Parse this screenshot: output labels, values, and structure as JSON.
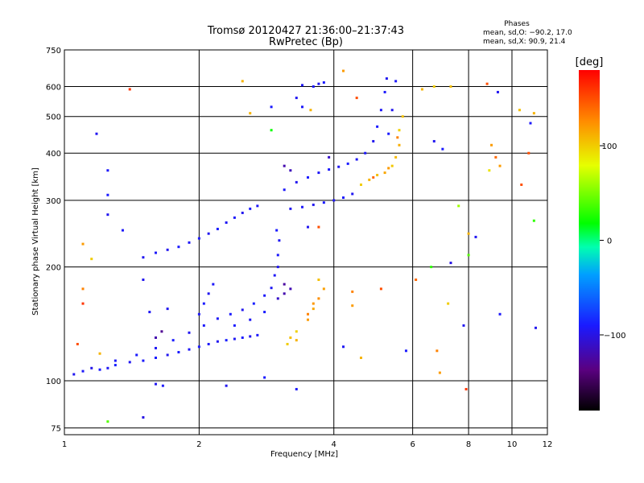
{
  "chart_data": {
    "type": "scatter",
    "title": "Tromsø 20120427 21:36:00–21:37:43",
    "subtitle": "RwPretec (Bp)",
    "xlabel": "Frequency [MHz]",
    "ylabel": "Stationary phase Virtual Height [km]",
    "x_scale": "log",
    "y_scale": "log",
    "xlim": [
      1,
      12
    ],
    "ylim": [
      72,
      750
    ],
    "x_ticks": [
      1,
      2,
      4,
      6,
      8,
      10,
      12
    ],
    "y_ticks": [
      75,
      100,
      200,
      300,
      400,
      500,
      600,
      750
    ],
    "grid": true,
    "phase_info": {
      "heading": "Phases",
      "line_o": "mean, sd,O: −90.2, 17.0",
      "line_x": "mean, sd,X:  90.9, 21.4"
    },
    "colorbar": {
      "label": "[deg]",
      "range": [
        -180,
        180
      ],
      "ticks": [
        100,
        0,
        -100
      ],
      "colormap": "rainbow"
    },
    "series": [
      {
        "values": [
          {
            "x": 1.05,
            "y": 104,
            "p": -95
          },
          {
            "x": 1.1,
            "y": 106,
            "p": -92
          },
          {
            "x": 1.15,
            "y": 108,
            "p": -98
          },
          {
            "x": 1.2,
            "y": 107,
            "p": -90
          },
          {
            "x": 1.25,
            "y": 108,
            "p": -94
          },
          {
            "x": 1.3,
            "y": 110,
            "p": -88
          },
          {
            "x": 1.4,
            "y": 112,
            "p": -95
          },
          {
            "x": 1.5,
            "y": 113,
            "p": -91
          },
          {
            "x": 1.6,
            "y": 115,
            "p": -90
          },
          {
            "x": 1.7,
            "y": 117,
            "p": -96
          },
          {
            "x": 1.8,
            "y": 119,
            "p": -89
          },
          {
            "x": 1.9,
            "y": 121,
            "p": -93
          },
          {
            "x": 2.0,
            "y": 123,
            "p": -90
          },
          {
            "x": 2.1,
            "y": 125,
            "p": -92
          },
          {
            "x": 2.2,
            "y": 127,
            "p": -95
          },
          {
            "x": 2.3,
            "y": 128,
            "p": -88
          },
          {
            "x": 2.4,
            "y": 129,
            "p": -94
          },
          {
            "x": 2.5,
            "y": 130,
            "p": -90
          },
          {
            "x": 2.6,
            "y": 131,
            "p": -96
          },
          {
            "x": 2.7,
            "y": 132,
            "p": -91
          },
          {
            "x": 1.3,
            "y": 113,
            "p": -92
          },
          {
            "x": 1.45,
            "y": 117,
            "p": -90
          },
          {
            "x": 1.6,
            "y": 122,
            "p": -94
          },
          {
            "x": 1.75,
            "y": 128,
            "p": -89
          },
          {
            "x": 1.9,
            "y": 134,
            "p": -95
          },
          {
            "x": 2.05,
            "y": 140,
            "p": -91
          },
          {
            "x": 2.2,
            "y": 146,
            "p": -93
          },
          {
            "x": 2.35,
            "y": 150,
            "p": -90
          },
          {
            "x": 2.5,
            "y": 154,
            "p": -96
          },
          {
            "x": 2.65,
            "y": 160,
            "p": -88
          },
          {
            "x": 2.8,
            "y": 168,
            "p": -92
          },
          {
            "x": 2.9,
            "y": 176,
            "p": -94
          },
          {
            "x": 2.0,
            "y": 150,
            "p": -93
          },
          {
            "x": 2.05,
            "y": 160,
            "p": -90
          },
          {
            "x": 2.1,
            "y": 170,
            "p": -95
          },
          {
            "x": 2.15,
            "y": 180,
            "p": -92
          },
          {
            "x": 2.4,
            "y": 140,
            "p": -90
          },
          {
            "x": 2.6,
            "y": 145,
            "p": -94
          },
          {
            "x": 2.8,
            "y": 152,
            "p": -89
          },
          {
            "x": 2.95,
            "y": 190,
            "p": -93
          },
          {
            "x": 3.0,
            "y": 200,
            "p": -96
          },
          {
            "x": 3.0,
            "y": 215,
            "p": -91
          },
          {
            "x": 3.02,
            "y": 235,
            "p": -94
          },
          {
            "x": 2.98,
            "y": 250,
            "p": -90
          },
          {
            "x": 3.0,
            "y": 165,
            "p": -110
          },
          {
            "x": 3.1,
            "y": 170,
            "p": -120
          },
          {
            "x": 3.1,
            "y": 180,
            "p": -125
          },
          {
            "x": 3.2,
            "y": 175,
            "p": -118
          },
          {
            "x": 3.15,
            "y": 125,
            "p": 100
          },
          {
            "x": 3.2,
            "y": 130,
            "p": 105
          },
          {
            "x": 3.3,
            "y": 135,
            "p": 98
          },
          {
            "x": 3.3,
            "y": 128,
            "p": 110
          },
          {
            "x": 3.5,
            "y": 145,
            "p": 120
          },
          {
            "x": 3.6,
            "y": 155,
            "p": 115
          },
          {
            "x": 3.7,
            "y": 165,
            "p": 125
          },
          {
            "x": 3.8,
            "y": 175,
            "p": 118
          },
          {
            "x": 3.7,
            "y": 185,
            "p": 105
          },
          {
            "x": 3.6,
            "y": 160,
            "p": 122
          },
          {
            "x": 3.5,
            "y": 150,
            "p": 130
          },
          {
            "x": 1.5,
            "y": 212,
            "p": -95
          },
          {
            "x": 1.6,
            "y": 218,
            "p": -92
          },
          {
            "x": 1.7,
            "y": 222,
            "p": -96
          },
          {
            "x": 1.8,
            "y": 226,
            "p": -90
          },
          {
            "x": 1.9,
            "y": 232,
            "p": -93
          },
          {
            "x": 2.0,
            "y": 238,
            "p": -91
          },
          {
            "x": 2.1,
            "y": 245,
            "p": -95
          },
          {
            "x": 2.2,
            "y": 252,
            "p": -89
          },
          {
            "x": 2.3,
            "y": 262,
            "p": -94
          },
          {
            "x": 2.4,
            "y": 270,
            "p": -92
          },
          {
            "x": 2.5,
            "y": 278,
            "p": -96
          },
          {
            "x": 2.6,
            "y": 285,
            "p": -90
          },
          {
            "x": 2.7,
            "y": 290,
            "p": -93
          },
          {
            "x": 3.2,
            "y": 285,
            "p": -95
          },
          {
            "x": 3.4,
            "y": 288,
            "p": -92
          },
          {
            "x": 3.6,
            "y": 292,
            "p": -96
          },
          {
            "x": 3.8,
            "y": 296,
            "p": -90
          },
          {
            "x": 4.0,
            "y": 300,
            "p": -94
          },
          {
            "x": 4.2,
            "y": 305,
            "p": -91
          },
          {
            "x": 4.4,
            "y": 312,
            "p": -95
          },
          {
            "x": 3.1,
            "y": 320,
            "p": -92
          },
          {
            "x": 3.3,
            "y": 335,
            "p": -96
          },
          {
            "x": 3.5,
            "y": 345,
            "p": -90
          },
          {
            "x": 3.7,
            "y": 355,
            "p": -93
          },
          {
            "x": 3.9,
            "y": 362,
            "p": -91
          },
          {
            "x": 4.1,
            "y": 368,
            "p": -95
          },
          {
            "x": 4.3,
            "y": 375,
            "p": -89
          },
          {
            "x": 4.5,
            "y": 385,
            "p": -94
          },
          {
            "x": 4.7,
            "y": 400,
            "p": -92
          },
          {
            "x": 4.9,
            "y": 430,
            "p": -96
          },
          {
            "x": 5.0,
            "y": 470,
            "p": -90
          },
          {
            "x": 5.1,
            "y": 520,
            "p": -93
          },
          {
            "x": 5.2,
            "y": 580,
            "p": -91
          },
          {
            "x": 5.25,
            "y": 630,
            "p": -95
          },
          {
            "x": 5.5,
            "y": 620,
            "p": -92
          },
          {
            "x": 5.4,
            "y": 520,
            "p": -96
          },
          {
            "x": 5.3,
            "y": 450,
            "p": -90
          },
          {
            "x": 3.1,
            "y": 370,
            "p": -120
          },
          {
            "x": 3.2,
            "y": 360,
            "p": -115
          },
          {
            "x": 3.9,
            "y": 390,
            "p": -110
          },
          {
            "x": 4.6,
            "y": 330,
            "p": 100
          },
          {
            "x": 4.8,
            "y": 340,
            "p": 110
          },
          {
            "x": 5.0,
            "y": 350,
            "p": 105
          },
          {
            "x": 5.2,
            "y": 355,
            "p": 115
          },
          {
            "x": 5.4,
            "y": 370,
            "p": 102
          },
          {
            "x": 5.5,
            "y": 390,
            "p": 108
          },
          {
            "x": 5.6,
            "y": 420,
            "p": 112
          },
          {
            "x": 5.6,
            "y": 460,
            "p": 98
          },
          {
            "x": 5.7,
            "y": 500,
            "p": 104
          },
          {
            "x": 5.55,
            "y": 440,
            "p": 130
          },
          {
            "x": 4.9,
            "y": 345,
            "p": 140
          },
          {
            "x": 5.3,
            "y": 365,
            "p": 120
          },
          {
            "x": 3.6,
            "y": 600,
            "p": -92
          },
          {
            "x": 3.7,
            "y": 610,
            "p": -95
          },
          {
            "x": 3.8,
            "y": 615,
            "p": -90
          },
          {
            "x": 3.4,
            "y": 605,
            "p": -94
          },
          {
            "x": 1.18,
            "y": 450,
            "p": -95
          },
          {
            "x": 1.25,
            "y": 360,
            "p": -92
          },
          {
            "x": 1.25,
            "y": 310,
            "p": -90
          },
          {
            "x": 1.25,
            "y": 275,
            "p": -96
          },
          {
            "x": 1.4,
            "y": 590,
            "p": 160
          },
          {
            "x": 2.5,
            "y": 620,
            "p": 110
          },
          {
            "x": 4.2,
            "y": 660,
            "p": 120
          },
          {
            "x": 4.5,
            "y": 560,
            "p": 150
          },
          {
            "x": 6.3,
            "y": 590,
            "p": 110
          },
          {
            "x": 6.7,
            "y": 600,
            "p": 100
          },
          {
            "x": 7.3,
            "y": 600,
            "p": 105
          },
          {
            "x": 8.8,
            "y": 610,
            "p": 150
          },
          {
            "x": 9.3,
            "y": 580,
            "p": -95
          },
          {
            "x": 10.4,
            "y": 520,
            "p": 105
          },
          {
            "x": 11.0,
            "y": 480,
            "p": -92
          },
          {
            "x": 11.2,
            "y": 510,
            "p": 110
          },
          {
            "x": 6.7,
            "y": 430,
            "p": -95
          },
          {
            "x": 7.0,
            "y": 410,
            "p": -90
          },
          {
            "x": 9.0,
            "y": 420,
            "p": 120
          },
          {
            "x": 9.2,
            "y": 390,
            "p": 140
          },
          {
            "x": 10.9,
            "y": 400,
            "p": 150
          },
          {
            "x": 8.9,
            "y": 360,
            "p": 90
          },
          {
            "x": 9.4,
            "y": 370,
            "p": 120
          },
          {
            "x": 10.5,
            "y": 330,
            "p": 150
          },
          {
            "x": 7.6,
            "y": 290,
            "p": 60
          },
          {
            "x": 11.2,
            "y": 265,
            "p": 30
          },
          {
            "x": 8.0,
            "y": 245,
            "p": 110
          },
          {
            "x": 8.3,
            "y": 240,
            "p": -95
          },
          {
            "x": 8.0,
            "y": 215,
            "p": 40
          },
          {
            "x": 6.6,
            "y": 200,
            "p": 30
          },
          {
            "x": 7.3,
            "y": 205,
            "p": -100
          },
          {
            "x": 6.1,
            "y": 185,
            "p": 140
          },
          {
            "x": 5.1,
            "y": 175,
            "p": 150
          },
          {
            "x": 4.4,
            "y": 172,
            "p": 130
          },
          {
            "x": 4.4,
            "y": 158,
            "p": 120
          },
          {
            "x": 7.2,
            "y": 160,
            "p": 100
          },
          {
            "x": 7.8,
            "y": 140,
            "p": -95
          },
          {
            "x": 9.4,
            "y": 150,
            "p": -92
          },
          {
            "x": 11.3,
            "y": 138,
            "p": -96
          },
          {
            "x": 5.8,
            "y": 120,
            "p": -90
          },
          {
            "x": 4.6,
            "y": 115,
            "p": 110
          },
          {
            "x": 6.8,
            "y": 120,
            "p": 130
          },
          {
            "x": 7.9,
            "y": 95,
            "p": 160
          },
          {
            "x": 6.9,
            "y": 105,
            "p": 120
          },
          {
            "x": 1.1,
            "y": 175,
            "p": 130
          },
          {
            "x": 1.1,
            "y": 160,
            "p": 160
          },
          {
            "x": 1.07,
            "y": 125,
            "p": 150
          },
          {
            "x": 1.2,
            "y": 118,
            "p": 110
          },
          {
            "x": 1.5,
            "y": 185,
            "p": -96
          },
          {
            "x": 1.15,
            "y": 210,
            "p": 100
          },
          {
            "x": 1.1,
            "y": 230,
            "p": 120
          },
          {
            "x": 1.35,
            "y": 250,
            "p": -92
          },
          {
            "x": 1.55,
            "y": 152,
            "p": -94
          },
          {
            "x": 1.7,
            "y": 155,
            "p": -95
          },
          {
            "x": 1.65,
            "y": 135,
            "p": -130
          },
          {
            "x": 1.6,
            "y": 130,
            "p": -120
          },
          {
            "x": 1.6,
            "y": 98,
            "p": -95
          },
          {
            "x": 1.66,
            "y": 97,
            "p": -92
          },
          {
            "x": 1.5,
            "y": 80,
            "p": -100
          },
          {
            "x": 1.25,
            "y": 78,
            "p": 40
          },
          {
            "x": 2.3,
            "y": 97,
            "p": -95
          },
          {
            "x": 3.3,
            "y": 95,
            "p": -92
          },
          {
            "x": 2.8,
            "y": 102,
            "p": -90
          },
          {
            "x": 4.2,
            "y": 123,
            "p": -94
          },
          {
            "x": 3.5,
            "y": 255,
            "p": -96
          },
          {
            "x": 3.7,
            "y": 255,
            "p": 150
          },
          {
            "x": 3.4,
            "y": 530,
            "p": -92
          },
          {
            "x": 3.55,
            "y": 520,
            "p": 110
          },
          {
            "x": 3.3,
            "y": 560,
            "p": -95
          },
          {
            "x": 2.9,
            "y": 530,
            "p": -90
          },
          {
            "x": 2.6,
            "y": 510,
            "p": 110
          },
          {
            "x": 2.9,
            "y": 460,
            "p": 20
          }
        ]
      }
    ]
  }
}
